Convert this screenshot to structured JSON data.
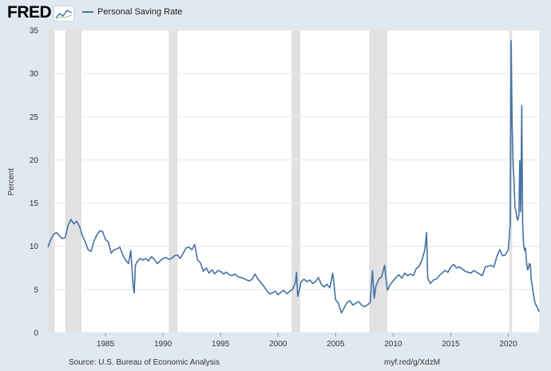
{
  "header": {
    "logo_text": "FRED",
    "logo_icon": "fred-chart-icon"
  },
  "legend": {
    "series_name": "Personal Saving Rate",
    "series_color": "#4572a7"
  },
  "footer": {
    "source": "Source: U.S. Bureau of Economic Analysis",
    "link": "myf.red/g/XdzM"
  },
  "chart_data": {
    "type": "line",
    "title": "",
    "xlabel": "",
    "ylabel": "Percent",
    "xlim": [
      1980.0,
      2022.67
    ],
    "ylim": [
      0,
      35
    ],
    "x_ticks": [
      1985,
      1990,
      1995,
      2000,
      2005,
      2010,
      2015,
      2020
    ],
    "y_ticks": [
      0,
      5,
      10,
      15,
      20,
      25,
      30,
      35
    ],
    "grid": true,
    "legend_position": "top-left",
    "colors": {
      "line": "#4572a7",
      "recession": "#e1e1e1",
      "background": "#ffffff",
      "gridline": "#e6e6e6"
    },
    "recessions": [
      {
        "start": 1980.0,
        "end": 1980.58
      },
      {
        "start": 1981.5,
        "end": 1982.92
      },
      {
        "start": 1990.5,
        "end": 1991.25
      },
      {
        "start": 2001.17,
        "end": 2001.92
      },
      {
        "start": 2007.92,
        "end": 2009.5
      },
      {
        "start": 2020.08,
        "end": 2020.33
      }
    ],
    "series": [
      {
        "name": "Personal Saving Rate",
        "points": [
          [
            1980.0,
            9.9
          ],
          [
            1980.25,
            10.8
          ],
          [
            1980.5,
            11.4
          ],
          [
            1980.75,
            11.6
          ],
          [
            1981.0,
            11.2
          ],
          [
            1981.25,
            10.9
          ],
          [
            1981.5,
            11.0
          ],
          [
            1981.75,
            12.4
          ],
          [
            1982.0,
            13.1
          ],
          [
            1982.25,
            12.6
          ],
          [
            1982.5,
            12.9
          ],
          [
            1982.75,
            12.3
          ],
          [
            1983.0,
            11.2
          ],
          [
            1983.25,
            10.5
          ],
          [
            1983.5,
            9.6
          ],
          [
            1983.75,
            9.4
          ],
          [
            1984.0,
            10.6
          ],
          [
            1984.25,
            11.3
          ],
          [
            1984.5,
            11.8
          ],
          [
            1984.75,
            11.7
          ],
          [
            1985.0,
            10.8
          ],
          [
            1985.25,
            10.5
          ],
          [
            1985.5,
            9.2
          ],
          [
            1985.75,
            9.6
          ],
          [
            1986.0,
            9.7
          ],
          [
            1986.25,
            9.9
          ],
          [
            1986.5,
            9.0
          ],
          [
            1986.75,
            8.4
          ],
          [
            1987.0,
            8.0
          ],
          [
            1987.2,
            9.5
          ],
          [
            1987.4,
            5.5
          ],
          [
            1987.5,
            4.6
          ],
          [
            1987.6,
            7.8
          ],
          [
            1987.75,
            8.2
          ],
          [
            1988.0,
            8.6
          ],
          [
            1988.25,
            8.4
          ],
          [
            1988.5,
            8.6
          ],
          [
            1988.75,
            8.3
          ],
          [
            1989.0,
            8.8
          ],
          [
            1989.25,
            8.5
          ],
          [
            1989.5,
            8.0
          ],
          [
            1989.75,
            8.3
          ],
          [
            1990.0,
            8.6
          ],
          [
            1990.25,
            8.7
          ],
          [
            1990.5,
            8.5
          ],
          [
            1990.75,
            8.6
          ],
          [
            1991.0,
            8.9
          ],
          [
            1991.25,
            9.0
          ],
          [
            1991.5,
            8.6
          ],
          [
            1991.75,
            9.2
          ],
          [
            1992.0,
            9.8
          ],
          [
            1992.25,
            9.9
          ],
          [
            1992.5,
            9.6
          ],
          [
            1992.75,
            10.2
          ],
          [
            1993.0,
            8.4
          ],
          [
            1993.25,
            8.1
          ],
          [
            1993.5,
            7.1
          ],
          [
            1993.75,
            7.5
          ],
          [
            1994.0,
            6.9
          ],
          [
            1994.25,
            7.3
          ],
          [
            1994.5,
            6.8
          ],
          [
            1994.75,
            7.2
          ],
          [
            1995.0,
            7.1
          ],
          [
            1995.25,
            6.8
          ],
          [
            1995.5,
            7.0
          ],
          [
            1995.75,
            6.7
          ],
          [
            1996.0,
            6.6
          ],
          [
            1996.25,
            6.8
          ],
          [
            1996.5,
            6.5
          ],
          [
            1996.75,
            6.4
          ],
          [
            1997.0,
            6.3
          ],
          [
            1997.25,
            6.1
          ],
          [
            1997.5,
            6.0
          ],
          [
            1997.75,
            6.2
          ],
          [
            1998.0,
            6.8
          ],
          [
            1998.25,
            6.2
          ],
          [
            1998.5,
            5.8
          ],
          [
            1998.75,
            5.4
          ],
          [
            1999.0,
            4.9
          ],
          [
            1999.25,
            4.5
          ],
          [
            1999.5,
            4.6
          ],
          [
            1999.75,
            4.8
          ],
          [
            2000.0,
            4.4
          ],
          [
            2000.25,
            4.7
          ],
          [
            2000.5,
            4.9
          ],
          [
            2000.75,
            4.5
          ],
          [
            2001.0,
            4.8
          ],
          [
            2001.25,
            5.0
          ],
          [
            2001.5,
            5.8
          ],
          [
            2001.6,
            7.0
          ],
          [
            2001.7,
            4.2
          ],
          [
            2001.75,
            4.4
          ],
          [
            2002.0,
            5.9
          ],
          [
            2002.25,
            6.2
          ],
          [
            2002.5,
            5.9
          ],
          [
            2002.75,
            6.1
          ],
          [
            2003.0,
            5.7
          ],
          [
            2003.25,
            5.9
          ],
          [
            2003.5,
            6.4
          ],
          [
            2003.75,
            5.6
          ],
          [
            2004.0,
            5.3
          ],
          [
            2004.25,
            5.6
          ],
          [
            2004.5,
            5.2
          ],
          [
            2004.75,
            6.9
          ],
          [
            2005.0,
            3.8
          ],
          [
            2005.25,
            3.4
          ],
          [
            2005.5,
            2.3
          ],
          [
            2005.75,
            2.9
          ],
          [
            2006.0,
            3.5
          ],
          [
            2006.25,
            3.7
          ],
          [
            2006.5,
            3.2
          ],
          [
            2006.75,
            3.4
          ],
          [
            2007.0,
            3.6
          ],
          [
            2007.25,
            3.2
          ],
          [
            2007.5,
            3.0
          ],
          [
            2007.75,
            3.2
          ],
          [
            2008.0,
            3.5
          ],
          [
            2008.2,
            7.2
          ],
          [
            2008.35,
            4.0
          ],
          [
            2008.5,
            5.4
          ],
          [
            2008.75,
            6.2
          ],
          [
            2009.0,
            6.5
          ],
          [
            2009.25,
            7.8
          ],
          [
            2009.4,
            6.0
          ],
          [
            2009.5,
            4.9
          ],
          [
            2009.75,
            5.6
          ],
          [
            2010.0,
            6.0
          ],
          [
            2010.25,
            6.4
          ],
          [
            2010.5,
            6.7
          ],
          [
            2010.75,
            6.3
          ],
          [
            2011.0,
            6.9
          ],
          [
            2011.25,
            6.6
          ],
          [
            2011.5,
            6.8
          ],
          [
            2011.75,
            6.6
          ],
          [
            2012.0,
            7.4
          ],
          [
            2012.25,
            7.7
          ],
          [
            2012.5,
            8.4
          ],
          [
            2012.75,
            9.6
          ],
          [
            2012.9,
            11.6
          ],
          [
            2013.0,
            6.3
          ],
          [
            2013.25,
            5.7
          ],
          [
            2013.5,
            6.1
          ],
          [
            2013.75,
            6.2
          ],
          [
            2014.0,
            6.6
          ],
          [
            2014.25,
            6.9
          ],
          [
            2014.5,
            7.2
          ],
          [
            2014.75,
            7.0
          ],
          [
            2015.0,
            7.6
          ],
          [
            2015.25,
            7.9
          ],
          [
            2015.5,
            7.5
          ],
          [
            2015.75,
            7.6
          ],
          [
            2016.0,
            7.4
          ],
          [
            2016.25,
            7.1
          ],
          [
            2016.5,
            7.0
          ],
          [
            2016.75,
            6.9
          ],
          [
            2017.0,
            7.2
          ],
          [
            2017.25,
            7.0
          ],
          [
            2017.5,
            6.8
          ],
          [
            2017.75,
            6.6
          ],
          [
            2018.0,
            7.6
          ],
          [
            2018.25,
            7.7
          ],
          [
            2018.5,
            7.8
          ],
          [
            2018.75,
            7.6
          ],
          [
            2019.0,
            8.8
          ],
          [
            2019.25,
            9.6
          ],
          [
            2019.5,
            8.9
          ],
          [
            2019.75,
            9.0
          ],
          [
            2020.0,
            9.6
          ],
          [
            2020.17,
            12.7
          ],
          [
            2020.25,
            33.8
          ],
          [
            2020.33,
            24.2
          ],
          [
            2020.42,
            19.3
          ],
          [
            2020.5,
            17.6
          ],
          [
            2020.58,
            14.5
          ],
          [
            2020.67,
            14.0
          ],
          [
            2020.75,
            13.3
          ],
          [
            2020.83,
            13.0
          ],
          [
            2020.92,
            13.6
          ],
          [
            2021.0,
            19.9
          ],
          [
            2021.08,
            14.0
          ],
          [
            2021.17,
            26.3
          ],
          [
            2021.25,
            12.6
          ],
          [
            2021.33,
            10.2
          ],
          [
            2021.42,
            9.5
          ],
          [
            2021.5,
            9.8
          ],
          [
            2021.58,
            8.2
          ],
          [
            2021.67,
            7.3
          ],
          [
            2021.75,
            7.4
          ],
          [
            2021.83,
            8.0
          ],
          [
            2021.92,
            7.9
          ],
          [
            2022.0,
            6.1
          ],
          [
            2022.17,
            4.6
          ],
          [
            2022.33,
            3.4
          ],
          [
            2022.5,
            3.0
          ],
          [
            2022.67,
            2.4
          ]
        ]
      }
    ]
  }
}
